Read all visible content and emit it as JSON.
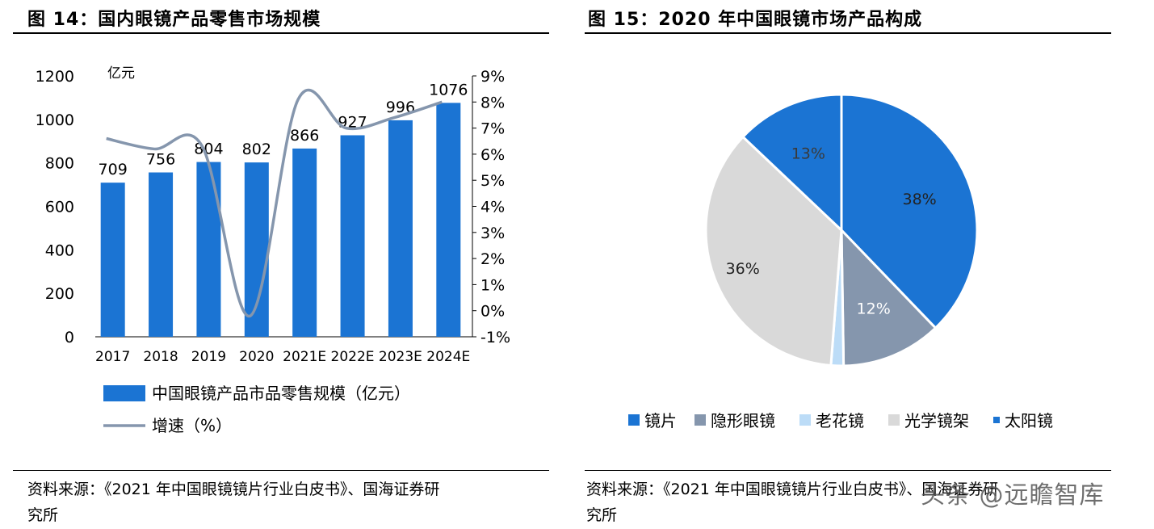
{
  "left": {
    "title": "图 14：国内眼镜产品零售市场规模",
    "source_line1": "资料来源：《2021 年中国眼镜镜片行业白皮书》、国海证券研",
    "source_line2": "究所"
  },
  "right": {
    "title": "图 15：2020 年中国眼镜市场产品构成",
    "source_line1": "资料来源：《2021 年中国眼镜镜片行业白皮书》、国海证券研",
    "source_line2": "究所"
  },
  "watermark": "头条 @远瞻智库",
  "chart_data": [
    {
      "type": "bar",
      "categories": [
        "2017",
        "2018",
        "2019",
        "2020",
        "2021E",
        "2022E",
        "2023E",
        "2024E"
      ],
      "unit_label": "亿元",
      "ylim": [
        0,
        1200
      ],
      "yticks": [
        "0",
        "200",
        "400",
        "600",
        "800",
        "1000",
        "1200"
      ],
      "y2lim": [
        -1,
        9
      ],
      "y2ticks": [
        "-1%",
        "0%",
        "1%",
        "2%",
        "3%",
        "4%",
        "5%",
        "6%",
        "7%",
        "8%",
        "9%"
      ],
      "series": [
        {
          "name": "中国眼镜产品市品零售规模（亿元）",
          "type": "bar",
          "color": "#1b74d3",
          "values": [
            709,
            756,
            804,
            802,
            866,
            927,
            996,
            1076
          ],
          "labels": [
            "709",
            "756",
            "804",
            "802",
            "866",
            "927",
            "996",
            "1076"
          ]
        },
        {
          "name": "增速（%）",
          "type": "line",
          "axis": "right",
          "color": "#8596ad",
          "values": [
            6.6,
            6.2,
            6.3,
            -0.2,
            8.1,
            7.0,
            7.4,
            8.0
          ]
        }
      ],
      "legend": "bottom"
    },
    {
      "type": "pie",
      "slices": [
        {
          "name": "镜片",
          "value": 38,
          "label": "38%",
          "color": "#1b74d3"
        },
        {
          "name": "隐形眼镜",
          "value": 12,
          "label": "12%",
          "color": "#8596ad"
        },
        {
          "name": "老花镜",
          "value": 1.5,
          "label": "",
          "color": "#bcdcf7"
        },
        {
          "name": "光学镜架",
          "value": 36,
          "label": "36%",
          "color": "#d9d9d9"
        },
        {
          "name": "太阳镜",
          "value": 13,
          "label": "13%",
          "color": "#1b74d3"
        }
      ],
      "legend": "bottom"
    }
  ]
}
